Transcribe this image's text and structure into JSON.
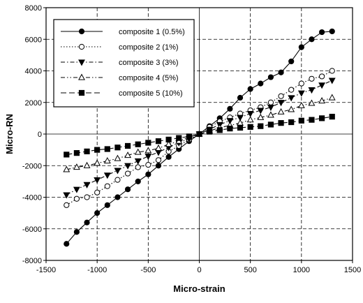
{
  "chart_data": {
    "type": "line",
    "xlabel": "Micro-strain",
    "ylabel": "Micro-RN",
    "xlim": [
      -1500,
      1500
    ],
    "ylim": [
      -8000,
      8000
    ],
    "xticks": [
      -1500,
      -1000,
      -500,
      0,
      500,
      1000,
      1500
    ],
    "yticks": [
      -8000,
      -6000,
      -4000,
      -2000,
      0,
      2000,
      4000,
      6000,
      8000
    ],
    "grid": true,
    "legend_position": "top-left",
    "series": [
      {
        "name": "composite 1 (0.5%)",
        "marker": "filled-circle",
        "line_style": "solid",
        "points": [
          [
            -1300,
            -6950
          ],
          [
            -1200,
            -6200
          ],
          [
            -1100,
            -5600
          ],
          [
            -1000,
            -5000
          ],
          [
            -900,
            -4500
          ],
          [
            -800,
            -4000
          ],
          [
            -700,
            -3500
          ],
          [
            -600,
            -3000
          ],
          [
            -500,
            -2550
          ],
          [
            -400,
            -2000
          ],
          [
            -300,
            -1450
          ],
          [
            -200,
            -950
          ],
          [
            -100,
            -450
          ],
          [
            0,
            0
          ],
          [
            100,
            500
          ],
          [
            200,
            1000
          ],
          [
            300,
            1600
          ],
          [
            400,
            2300
          ],
          [
            500,
            2850
          ],
          [
            600,
            3200
          ],
          [
            700,
            3600
          ],
          [
            800,
            3900
          ],
          [
            900,
            4600
          ],
          [
            1000,
            5500
          ],
          [
            1100,
            6000
          ],
          [
            1200,
            6450
          ],
          [
            1300,
            6500
          ]
        ]
      },
      {
        "name": "composite 2 (1%)",
        "marker": "open-circle",
        "line_style": "dotted",
        "points": [
          [
            -1300,
            -4500
          ],
          [
            -1200,
            -4100
          ],
          [
            -1100,
            -4000
          ],
          [
            -1000,
            -3700
          ],
          [
            -900,
            -3300
          ],
          [
            -800,
            -2900
          ],
          [
            -700,
            -2500
          ],
          [
            -600,
            -2100
          ],
          [
            -500,
            -1950
          ],
          [
            -400,
            -1650
          ],
          [
            -300,
            -1100
          ],
          [
            -200,
            -750
          ],
          [
            -100,
            -350
          ],
          [
            0,
            0
          ],
          [
            100,
            450
          ],
          [
            200,
            800
          ],
          [
            300,
            1050
          ],
          [
            400,
            1300
          ],
          [
            500,
            1500
          ],
          [
            600,
            1700
          ],
          [
            700,
            2000
          ],
          [
            800,
            2400
          ],
          [
            900,
            2800
          ],
          [
            1000,
            3200
          ],
          [
            1100,
            3500
          ],
          [
            1200,
            3650
          ],
          [
            1300,
            4000
          ]
        ]
      },
      {
        "name": "composite 3 (3%)",
        "marker": "filled-triangle-down",
        "line_style": "dash-dot",
        "points": [
          [
            -1300,
            -3850
          ],
          [
            -1200,
            -3500
          ],
          [
            -1100,
            -3200
          ],
          [
            -1000,
            -2900
          ],
          [
            -900,
            -2600
          ],
          [
            -800,
            -2300
          ],
          [
            -700,
            -2000
          ],
          [
            -600,
            -1700
          ],
          [
            -500,
            -1400
          ],
          [
            -400,
            -1150
          ],
          [
            -300,
            -850
          ],
          [
            -200,
            -550
          ],
          [
            -100,
            -300
          ],
          [
            0,
            0
          ],
          [
            100,
            300
          ],
          [
            200,
            600
          ],
          [
            300,
            850
          ],
          [
            400,
            1050
          ],
          [
            500,
            1300
          ],
          [
            600,
            1500
          ],
          [
            700,
            1700
          ],
          [
            800,
            2000
          ],
          [
            900,
            2300
          ],
          [
            1000,
            2600
          ],
          [
            1100,
            2800
          ],
          [
            1200,
            3100
          ],
          [
            1300,
            3400
          ]
        ]
      },
      {
        "name": "composite 4 (5%)",
        "marker": "open-triangle-up",
        "line_style": "dash-dot-dot",
        "points": [
          [
            -1300,
            -2250
          ],
          [
            -1200,
            -2100
          ],
          [
            -1100,
            -2000
          ],
          [
            -1000,
            -1850
          ],
          [
            -900,
            -1700
          ],
          [
            -800,
            -1550
          ],
          [
            -700,
            -1350
          ],
          [
            -600,
            -1150
          ],
          [
            -500,
            -1050
          ],
          [
            -400,
            -900
          ],
          [
            -300,
            -650
          ],
          [
            -200,
            -450
          ],
          [
            -100,
            -200
          ],
          [
            0,
            0
          ],
          [
            100,
            200
          ],
          [
            200,
            400
          ],
          [
            300,
            550
          ],
          [
            400,
            700
          ],
          [
            500,
            900
          ],
          [
            600,
            1050
          ],
          [
            700,
            1200
          ],
          [
            800,
            1400
          ],
          [
            900,
            1550
          ],
          [
            1000,
            1800
          ],
          [
            1100,
            1950
          ],
          [
            1200,
            2100
          ],
          [
            1300,
            2300
          ]
        ]
      },
      {
        "name": "composite 5 (10%)",
        "marker": "filled-square",
        "line_style": "dashed",
        "points": [
          [
            -1300,
            -1300
          ],
          [
            -1200,
            -1200
          ],
          [
            -1100,
            -1100
          ],
          [
            -1000,
            -1000
          ],
          [
            -900,
            -950
          ],
          [
            -800,
            -850
          ],
          [
            -700,
            -750
          ],
          [
            -600,
            -650
          ],
          [
            -500,
            -550
          ],
          [
            -400,
            -450
          ],
          [
            -300,
            -350
          ],
          [
            -200,
            -250
          ],
          [
            -100,
            -150
          ],
          [
            0,
            0
          ],
          [
            100,
            150
          ],
          [
            200,
            250
          ],
          [
            300,
            350
          ],
          [
            400,
            400
          ],
          [
            500,
            450
          ],
          [
            600,
            500
          ],
          [
            700,
            600
          ],
          [
            800,
            700
          ],
          [
            900,
            750
          ],
          [
            1000,
            850
          ],
          [
            1100,
            900
          ],
          [
            1200,
            1000
          ],
          [
            1300,
            1100
          ]
        ]
      }
    ]
  }
}
